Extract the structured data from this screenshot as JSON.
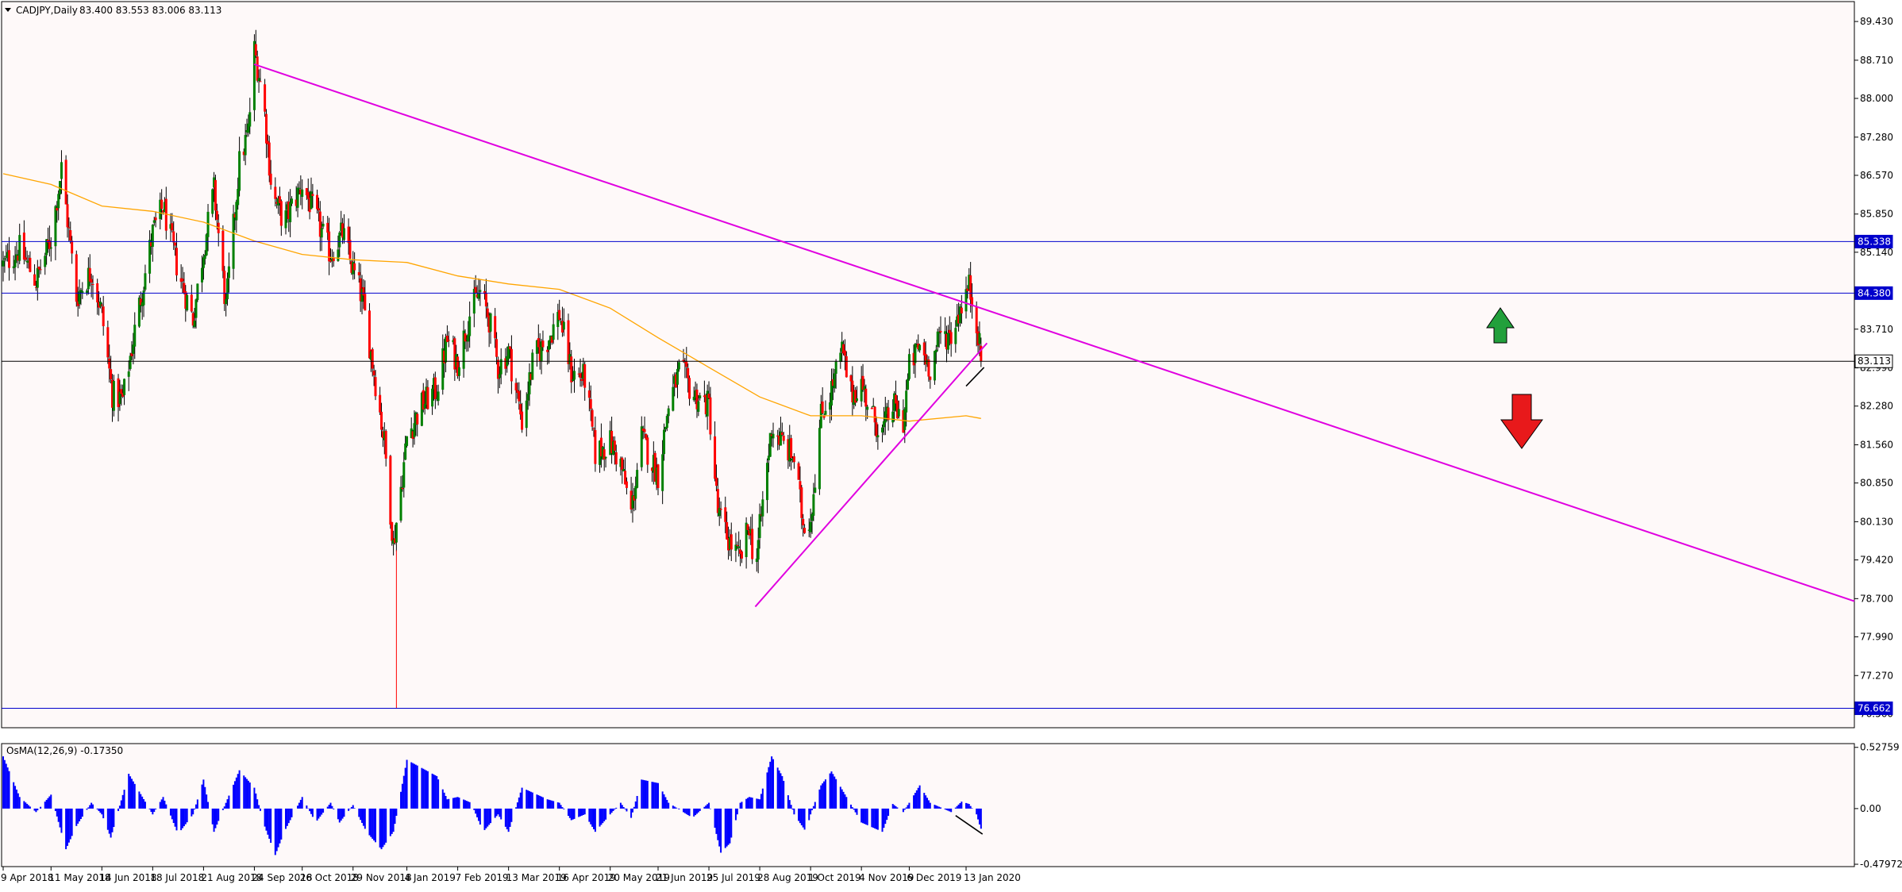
{
  "header": {
    "symbol_label": "CADJPY,Daily",
    "ohlc_label": "83.400 83.553 83.006 83.113"
  },
  "colors": {
    "background": "#FEF9F9",
    "bull_candle": "#008000",
    "bear_candle": "#FF0000",
    "wick": "#333333",
    "moving_average": "#FFA500",
    "trendline": "#E000E0",
    "level_line": "#0000CC",
    "current_price_line": "#000000",
    "macd_histogram": "#0000FF",
    "arrow_up": "#22A03C",
    "arrow_down": "#E8191B"
  },
  "chart_data": [
    {
      "type": "candlestick",
      "title": "CADJPY,Daily",
      "ohlc_last": {
        "open": 83.4,
        "high": 83.553,
        "low": 83.006,
        "close": 83.113
      },
      "ylim": [
        76.3,
        89.8
      ],
      "y_ticks": [
        "89.430",
        "88.710",
        "88.000",
        "87.280",
        "86.570",
        "85.850",
        "85.140",
        "83.710",
        "82.990",
        "82.280",
        "81.560",
        "80.850",
        "80.130",
        "79.420",
        "78.700",
        "77.990",
        "77.270",
        "76.560"
      ],
      "x_tick_labels": [
        "9 Apr 2018",
        "11 May 2018",
        "14 Jun 2018",
        "18 Jul 2018",
        "21 Aug 2018",
        "24 Sep 2018",
        "26 Oct 2018",
        "29 Nov 2018",
        "4 Jan 2019",
        "7 Feb 2019",
        "13 Mar 2019",
        "16 Apr 2019",
        "20 May 2019",
        "21 Jun 2019",
        "25 Jul 2019",
        "28 Aug 2019",
        "1 Oct 2019",
        "4 Nov 2019",
        "6 Dec 2019",
        "13 Jan 2020"
      ],
      "price_path": [
        [
          "9 Apr 2018",
          84.9
        ],
        [
          "20 Apr 2018",
          85.2
        ],
        [
          "1 May 2018",
          84.6
        ],
        [
          "11 May 2018",
          85.4
        ],
        [
          "18 May 2018",
          86.7
        ],
        [
          "28 May 2018",
          84.3
        ],
        [
          "7 Jun 2018",
          84.8
        ],
        [
          "14 Jun 2018",
          84.0
        ],
        [
          "21 Jun 2018",
          82.5
        ],
        [
          "28 Jun 2018",
          82.4
        ],
        [
          "8 Jul 2018",
          84.0
        ],
        [
          "18 Jul 2018",
          85.5
        ],
        [
          "25 Jul 2018",
          86.0
        ],
        [
          "4 Aug 2018",
          84.8
        ],
        [
          "14 Aug 2018",
          83.9
        ],
        [
          "21 Aug 2018",
          85.2
        ],
        [
          "28 Aug 2018",
          86.3
        ],
        [
          "5 Sep 2018",
          84.1
        ],
        [
          "14 Sep 2018",
          86.8
        ],
        [
          "20 Sep 2018",
          87.4
        ],
        [
          "24 Sep 2018",
          88.9
        ],
        [
          "30 Sep 2018",
          88.0
        ],
        [
          "6 Oct 2018",
          86.2
        ],
        [
          "14 Oct 2018",
          85.7
        ],
        [
          "26 Oct 2018",
          86.4
        ],
        [
          "4 Nov 2018",
          85.8
        ],
        [
          "14 Nov 2018",
          85.1
        ],
        [
          "22 Nov 2018",
          85.5
        ],
        [
          "29 Nov 2018",
          84.8
        ],
        [
          "5 Dec 2018",
          84.3
        ],
        [
          "12 Dec 2018",
          83.1
        ],
        [
          "20 Dec 2018",
          81.6
        ],
        [
          "26 Dec 2018",
          79.7
        ],
        [
          "2 Jan 2019",
          81.2
        ],
        [
          "4 Jan 2019",
          81.7
        ],
        [
          "14 Jan 2019",
          82.3
        ],
        [
          "24 Jan 2019",
          82.6
        ],
        [
          "31 Jan 2019",
          83.5
        ],
        [
          "7 Feb 2019",
          83.1
        ],
        [
          "16 Feb 2019",
          84.1
        ],
        [
          "22 Feb 2019",
          84.4
        ],
        [
          "28 Feb 2019",
          83.9
        ],
        [
          "6 Mar 2019",
          83.0
        ],
        [
          "13 Mar 2019",
          83.3
        ],
        [
          "22 Mar 2019",
          82.0
        ],
        [
          "30 Mar 2019",
          83.2
        ],
        [
          "8 Apr 2019",
          83.5
        ],
        [
          "16 Apr 2019",
          84.0
        ],
        [
          "24 Apr 2019",
          82.9
        ],
        [
          "3 May 2019",
          82.8
        ],
        [
          "10 May 2019",
          81.4
        ],
        [
          "20 May 2019",
          81.6
        ],
        [
          "27 May 2019",
          81.2
        ],
        [
          "3 Jun 2019",
          80.3
        ],
        [
          "10 Jun 2019",
          81.7
        ],
        [
          "21 Jun 2019",
          81.0
        ],
        [
          "28 Jun 2019",
          82.3
        ],
        [
          "6 Jul 2019",
          83.0
        ],
        [
          "14 Jul 2019",
          82.5
        ],
        [
          "25 Jul 2019",
          82.3
        ],
        [
          "31 Jul 2019",
          80.3
        ],
        [
          "7 Aug 2019",
          79.8
        ],
        [
          "15 Aug 2019",
          79.4
        ],
        [
          "21 Aug 2019",
          80.1
        ],
        [
          "25 Aug 2019",
          79.2
        ],
        [
          "28 Aug 2019",
          80.0
        ],
        [
          "5 Sep 2019",
          81.9
        ],
        [
          "12 Sep 2019",
          81.6
        ],
        [
          "20 Sep 2019",
          81.3
        ],
        [
          "26 Sep 2019",
          80.1
        ],
        [
          "1 Oct 2019",
          80.2
        ],
        [
          "8 Oct 2019",
          82.1
        ],
        [
          "15 Oct 2019",
          82.6
        ],
        [
          "22 Oct 2019",
          83.3
        ],
        [
          "28 Oct 2019",
          82.5
        ],
        [
          "4 Nov 2019",
          82.7
        ],
        [
          "11 Nov 2019",
          82.1
        ],
        [
          "18 Nov 2019",
          81.8
        ],
        [
          "25 Nov 2019",
          82.3
        ],
        [
          "2 Dec 2019",
          82.0
        ],
        [
          "6 Dec 2019",
          83.0
        ],
        [
          "13 Dec 2019",
          83.4
        ],
        [
          "20 Dec 2019",
          83.0
        ],
        [
          "27 Dec 2019",
          83.6
        ],
        [
          "3 Jan 2020",
          83.6
        ],
        [
          "10 Jan 2020",
          84.2
        ],
        [
          "15 Jan 2020",
          84.5
        ],
        [
          "20 Jan 2020",
          83.9
        ],
        [
          "23 Jan 2020",
          83.113
        ]
      ],
      "moving_average_path": [
        [
          "9 Apr 2018",
          86.6
        ],
        [
          "11 May 2018",
          86.4
        ],
        [
          "14 Jun 2018",
          86.0
        ],
        [
          "18 Jul 2018",
          85.9
        ],
        [
          "21 Aug 2018",
          85.7
        ],
        [
          "24 Sep 2018",
          85.35
        ],
        [
          "26 Oct 2018",
          85.1
        ],
        [
          "29 Nov 2018",
          85.0
        ],
        [
          "4 Jan 2019",
          84.95
        ],
        [
          "7 Feb 2019",
          84.7
        ],
        [
          "13 Mar 2019",
          84.55
        ],
        [
          "16 Apr 2019",
          84.45
        ],
        [
          "20 May 2019",
          84.1
        ],
        [
          "21 Jun 2019",
          83.55
        ],
        [
          "25 Jul 2019",
          83.0
        ],
        [
          "28 Aug 2019",
          82.45
        ],
        [
          "1 Oct 2019",
          82.1
        ],
        [
          "4 Nov 2019",
          82.1
        ],
        [
          "6 Dec 2019",
          82.0
        ],
        [
          "13 Jan 2020",
          82.1
        ],
        [
          "23 Jan 2020",
          82.05
        ]
      ],
      "drawn_lines": [
        {
          "kind": "descending-trendline",
          "points": [
            [
              "9 Apr 2018",
              90.2
            ],
            [
              "23 Jan 2020",
              84.1
            ]
          ]
        },
        {
          "kind": "ascending-trendline",
          "points": [
            [
              "25 Aug 2019",
              78.55
            ],
            [
              "27 Jan 2020",
              83.45
            ]
          ]
        },
        {
          "kind": "small-black-line",
          "points": [
            [
              "13 Jan 2020",
              82.65
            ],
            [
              "25 Jan 2020",
              83.0
            ]
          ]
        }
      ],
      "horizontal_levels": [
        {
          "value": 85.338,
          "label": "85.338"
        },
        {
          "value": 84.38,
          "label": "84.380"
        },
        {
          "value": 83.113,
          "label": "83.113",
          "current": true
        },
        {
          "value": 76.662,
          "label": "76.662"
        }
      ],
      "annotations": [
        "arrow-up",
        "arrow-down"
      ]
    },
    {
      "type": "bar",
      "title": "OsMA(12,26,9) -0.17350",
      "ylim": [
        -0.5,
        0.56
      ],
      "y_ticks": [
        "0.52759",
        "0.00",
        "-0.47972"
      ],
      "histogram_path": [
        [
          "9 Apr 2018",
          0.45
        ],
        [
          "20 Apr 2018",
          0.1
        ],
        [
          "1 May 2018",
          -0.03
        ],
        [
          "11 May 2018",
          0.12
        ],
        [
          "21 May 2018",
          -0.35
        ],
        [
          "28 May 2018",
          -0.15
        ],
        [
          "7 Jun 2018",
          0.05
        ],
        [
          "14 Jun 2018",
          -0.05
        ],
        [
          "20 Jun 2018",
          -0.25
        ],
        [
          "2 Jul 2018",
          0.3
        ],
        [
          "18 Jul 2018",
          -0.05
        ],
        [
          "25 Jul 2018",
          0.1
        ],
        [
          "4 Aug 2018",
          -0.22
        ],
        [
          "14 Aug 2018",
          -0.05
        ],
        [
          "21 Aug 2018",
          0.25
        ],
        [
          "28 Aug 2018",
          -0.2
        ],
        [
          "14 Sep 2018",
          0.33
        ],
        [
          "24 Sep 2018",
          0.18
        ],
        [
          "30 Sep 2018",
          -0.12
        ],
        [
          "8 Oct 2018",
          -0.4
        ],
        [
          "14 Oct 2018",
          -0.2
        ],
        [
          "26 Oct 2018",
          0.1
        ],
        [
          "4 Nov 2018",
          -0.12
        ],
        [
          "14 Nov 2018",
          0.05
        ],
        [
          "20 Nov 2018",
          -0.12
        ],
        [
          "29 Nov 2018",
          0.03
        ],
        [
          "8 Dec 2018",
          -0.2
        ],
        [
          "18 Dec 2018",
          -0.35
        ],
        [
          "26 Dec 2018",
          -0.2
        ],
        [
          "4 Jan 2019",
          0.42
        ],
        [
          "14 Jan 2019",
          0.35
        ],
        [
          "24 Jan 2019",
          0.28
        ],
        [
          "31 Jan 2019",
          0.08
        ],
        [
          "7 Feb 2019",
          0.1
        ],
        [
          "16 Feb 2019",
          0.05
        ],
        [
          "24 Feb 2019",
          -0.2
        ],
        [
          "6 Mar 2019",
          -0.05
        ],
        [
          "13 Mar 2019",
          -0.2
        ],
        [
          "22 Mar 2019",
          0.18
        ],
        [
          "8 Apr 2019",
          0.08
        ],
        [
          "16 Apr 2019",
          0.05
        ],
        [
          "24 Apr 2019",
          -0.1
        ],
        [
          "3 May 2019",
          -0.05
        ],
        [
          "10 May 2019",
          -0.2
        ],
        [
          "20 May 2019",
          -0.05
        ],
        [
          "27 May 2019",
          0.05
        ],
        [
          "3 Jun 2019",
          -0.08
        ],
        [
          "10 Jun 2019",
          0.25
        ],
        [
          "21 Jun 2019",
          0.22
        ],
        [
          "28 Jun 2019",
          0.05
        ],
        [
          "14 Jul 2019",
          -0.08
        ],
        [
          "25 Jul 2019",
          0.05
        ],
        [
          "2 Aug 2019",
          -0.38
        ],
        [
          "8 Aug 2019",
          -0.3
        ],
        [
          "15 Aug 2019",
          0.05
        ],
        [
          "21 Aug 2019",
          0.1
        ],
        [
          "28 Aug 2019",
          0.08
        ],
        [
          "5 Sep 2019",
          0.45
        ],
        [
          "12 Sep 2019",
          0.28
        ],
        [
          "20 Sep 2019",
          -0.05
        ],
        [
          "28 Sep 2019",
          -0.2
        ],
        [
          "1 Oct 2019",
          -0.05
        ],
        [
          "8 Oct 2019",
          0.2
        ],
        [
          "15 Oct 2019",
          0.32
        ],
        [
          "25 Oct 2019",
          0.1
        ],
        [
          "4 Nov 2019",
          -0.12
        ],
        [
          "18 Nov 2019",
          -0.2
        ],
        [
          "25 Nov 2019",
          0.04
        ],
        [
          "2 Dec 2019",
          -0.03
        ],
        [
          "6 Dec 2019",
          0.05
        ],
        [
          "13 Dec 2019",
          0.2
        ],
        [
          "20 Dec 2019",
          0.05
        ],
        [
          "3 Jan 2020",
          -0.03
        ],
        [
          "10 Jan 2020",
          0.06
        ],
        [
          "15 Jan 2020",
          0.04
        ],
        [
          "20 Jan 2020",
          -0.05
        ],
        [
          "23 Jan 2020",
          -0.18
        ]
      ],
      "drawn_lines": [
        {
          "kind": "small-black-line",
          "points": [
            [
              "6 Jan 2020",
              -0.06
            ],
            [
              "24 Jan 2020",
              -0.22
            ]
          ]
        }
      ]
    }
  ]
}
